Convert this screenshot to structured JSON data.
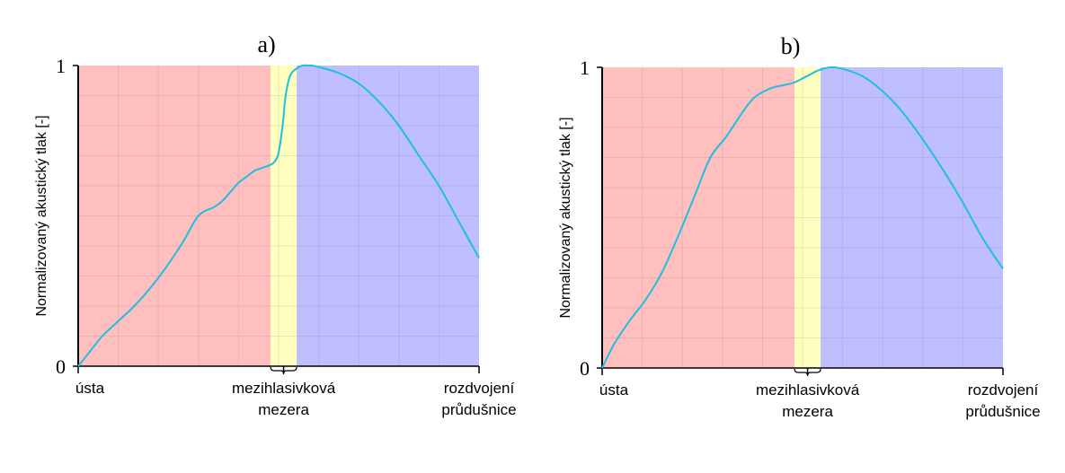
{
  "chart_data": [
    {
      "type": "line",
      "title": "a)",
      "ylabel": "Normalizovaný akustický tlak [-]",
      "ylim": [
        0,
        1
      ],
      "y_ticks": [
        "0",
        "1"
      ],
      "x_ticks": [
        "ústa",
        "mezihlasivková mezera",
        "rozdvojení průdušnice"
      ],
      "x_tick_lines": [
        [
          "ústa"
        ],
        [
          "mezihlasivková",
          "mezera"
        ],
        [
          "rozdvojení",
          "průdušnice"
        ]
      ],
      "regions": [
        {
          "from": 0.0,
          "to": 0.48,
          "color": "#ffbfbf"
        },
        {
          "from": 0.48,
          "to": 0.545,
          "color": "#ffffbf"
        },
        {
          "from": 0.545,
          "to": 1.0,
          "color": "#bfbfff"
        }
      ],
      "grid": true,
      "line_color": "#1fbfe0",
      "series": [
        {
          "x": [
            0,
            0.03,
            0.06,
            0.1,
            0.14,
            0.18,
            0.22,
            0.26,
            0.3,
            0.34,
            0.36,
            0.38,
            0.4,
            0.42,
            0.44,
            0.46,
            0.48,
            0.49,
            0.5,
            0.51,
            0.515,
            0.52,
            0.53,
            0.545,
            0.56,
            0.58,
            0.6,
            0.65,
            0.7,
            0.75,
            0.8,
            0.85,
            0.9,
            0.95,
            1.0
          ],
          "y": [
            0,
            0.05,
            0.1,
            0.15,
            0.2,
            0.26,
            0.33,
            0.41,
            0.5,
            0.53,
            0.55,
            0.58,
            0.61,
            0.63,
            0.65,
            0.66,
            0.67,
            0.68,
            0.71,
            0.8,
            0.87,
            0.92,
            0.97,
            0.99,
            1.0,
            1.0,
            0.995,
            0.975,
            0.94,
            0.88,
            0.8,
            0.7,
            0.6,
            0.48,
            0.36
          ]
        }
      ]
    },
    {
      "type": "line",
      "title": "b)",
      "ylabel": "Normalizovaný akustický tlak [-]",
      "ylim": [
        0,
        1
      ],
      "y_ticks": [
        "0",
        "1"
      ],
      "x_ticks": [
        "ústa",
        "mezihlasivková mezera",
        "rozdvojení průdušnice"
      ],
      "x_tick_lines": [
        [
          "ústa"
        ],
        [
          "mezihlasivková",
          "mezera"
        ],
        [
          "rozdvojení",
          "průdušnice"
        ]
      ],
      "regions": [
        {
          "from": 0.0,
          "to": 0.48,
          "color": "#ffbfbf"
        },
        {
          "from": 0.48,
          "to": 0.545,
          "color": "#ffffbf"
        },
        {
          "from": 0.545,
          "to": 1.0,
          "color": "#bfbfff"
        }
      ],
      "grid": true,
      "line_color": "#1fbfe0",
      "series": [
        {
          "x": [
            0,
            0.03,
            0.07,
            0.11,
            0.15,
            0.19,
            0.23,
            0.27,
            0.31,
            0.35,
            0.38,
            0.42,
            0.45,
            0.48,
            0.51,
            0.54,
            0.57,
            0.6,
            0.65,
            0.7,
            0.75,
            0.8,
            0.85,
            0.9,
            0.95,
            1.0
          ],
          "y": [
            0,
            0.08,
            0.16,
            0.23,
            0.32,
            0.44,
            0.57,
            0.7,
            0.77,
            0.85,
            0.9,
            0.93,
            0.94,
            0.95,
            0.97,
            0.99,
            1.0,
            0.995,
            0.97,
            0.92,
            0.85,
            0.76,
            0.66,
            0.55,
            0.43,
            0.33
          ]
        }
      ]
    }
  ]
}
